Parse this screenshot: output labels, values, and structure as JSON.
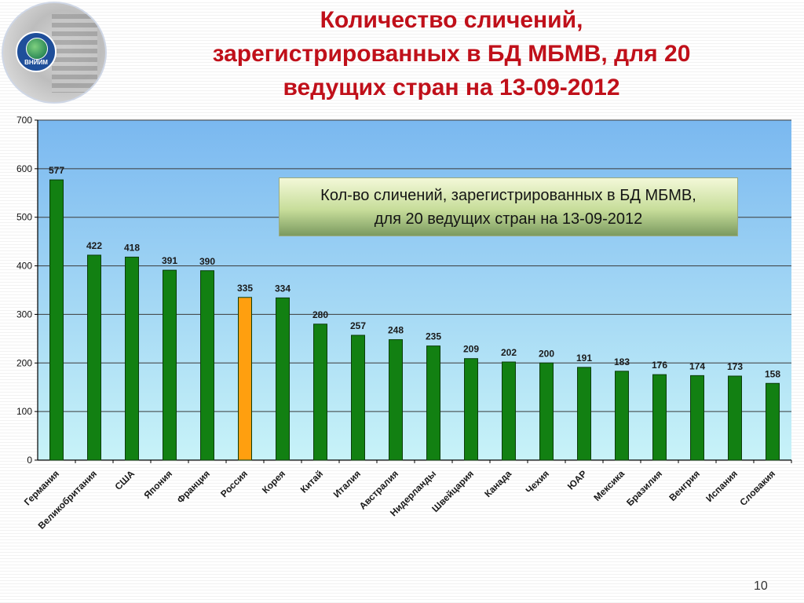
{
  "slide": {
    "title_lines": [
      "Количество сличений,",
      "зарегистрированных в БД МБМВ, для 20",
      "ведущих стран на 13-09-2012"
    ],
    "page_number": "10",
    "logo_text": "ВНИИМ"
  },
  "colors": {
    "bar": "#128012",
    "highlight_bar": "#ff9f0f",
    "title": "#c0101a",
    "plot_top": "#7ab8f0",
    "plot_bottom": "#c8f3f8"
  },
  "chart_data": {
    "type": "bar",
    "categories": [
      "Германия",
      "Великобритания",
      "США",
      "Япония",
      "Франция",
      "Россия",
      "Корея",
      "Китай",
      "Италия",
      "Австралия",
      "Нидерланды",
      "Швейцария",
      "Канада",
      "Чехия",
      "ЮАР",
      "Мексика",
      "Бразилия",
      "Венгрия",
      "Испания",
      "Словакия"
    ],
    "values": [
      577,
      422,
      418,
      391,
      390,
      335,
      334,
      280,
      257,
      248,
      235,
      209,
      202,
      200,
      191,
      183,
      176,
      174,
      173,
      158
    ],
    "highlight_category": "Россия",
    "title": "Кол-во сличений, зарегистрированных в БД МБМВ, для 20 ведущих стран на 13-09-2012",
    "title_lines": [
      "Кол-во сличений, зарегистрированных в БД МБМВ,",
      "для 20 ведущих стран на 13-09-2012"
    ],
    "xlabel": "",
    "ylabel": "",
    "ylim": [
      0,
      700
    ],
    "yticks": [
      0,
      100,
      200,
      300,
      400,
      500,
      600,
      700
    ],
    "grid": true,
    "data_labels": true,
    "legend_placement": "top-right"
  }
}
